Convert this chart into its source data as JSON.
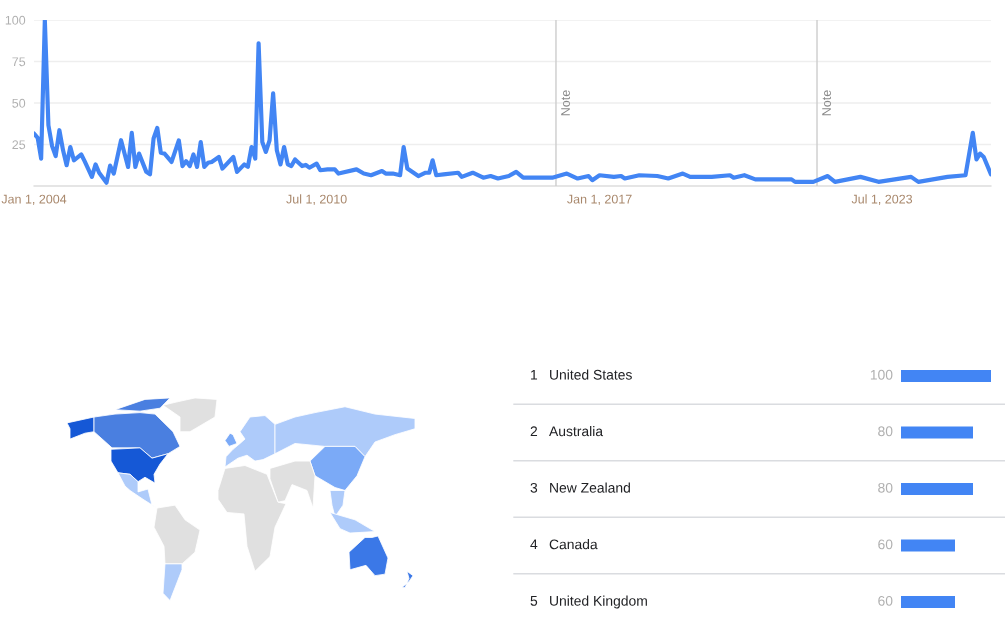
{
  "chart_data": [
    {
      "type": "line",
      "x": [
        "2004-01",
        "2004-02",
        "2004-03",
        "2004-04",
        "2004-05",
        "2004-06",
        "2004-07",
        "2004-08",
        "2004-09",
        "2004-10",
        "2004-11",
        "2004-12",
        "2005-02",
        "2005-03",
        "2005-05",
        "2005-06",
        "2005-07",
        "2005-09",
        "2005-10",
        "2005-11",
        "2006-01",
        "2006-03",
        "2006-04",
        "2006-05",
        "2006-06",
        "2006-08",
        "2006-09",
        "2006-10",
        "2006-11",
        "2006-12",
        "2007-01",
        "2007-03",
        "2007-05",
        "2007-06",
        "2007-07",
        "2007-08",
        "2007-09",
        "2007-10",
        "2007-11",
        "2007-12",
        "2008-01",
        "2008-02",
        "2008-04",
        "2008-05",
        "2008-08",
        "2008-09",
        "2008-11",
        "2008-12",
        "2009-01",
        "2009-02",
        "2009-03",
        "2009-04",
        "2009-05",
        "2009-06",
        "2009-07",
        "2009-08",
        "2009-09",
        "2009-10",
        "2009-11",
        "2009-12",
        "2010-01",
        "2010-03",
        "2010-04",
        "2010-05",
        "2010-07",
        "2010-08",
        "2010-10",
        "2010-12",
        "2011-01",
        "2011-06",
        "2011-08",
        "2011-10",
        "2012-01",
        "2012-02",
        "2012-04",
        "2012-06",
        "2012-07",
        "2012-08",
        "2012-11",
        "2013-01",
        "2013-02",
        "2013-03",
        "2013-04",
        "2013-06",
        "2013-10",
        "2013-11",
        "2014-02",
        "2014-05",
        "2014-07",
        "2014-09",
        "2014-12",
        "2015-02",
        "2015-04",
        "2015-12",
        "2016-04",
        "2016-07",
        "2016-10",
        "2016-11",
        "2017-01",
        "2017-05",
        "2017-07",
        "2017-08",
        "2017-12",
        "2018-05",
        "2018-08",
        "2018-12",
        "2019-02",
        "2019-08",
        "2020-01",
        "2020-02",
        "2020-05",
        "2020-08",
        "2021-06",
        "2021-07",
        "2021-12",
        "2022-04",
        "2022-06",
        "2023-01",
        "2023-06",
        "2024-03",
        "2024-05",
        "2025-01",
        "2025-06",
        "2025-08",
        "2025-09",
        "2025-10",
        "2025-11",
        "2026-01"
      ],
      "series": [
        {
          "color": "#4285f4",
          "values": [
            31.6,
            29,
            16.5,
            100,
            36.6,
            24,
            18,
            33.6,
            21.5,
            12.5,
            23.5,
            15.5,
            19,
            15,
            5.5,
            13,
            8,
            2,
            12.3,
            7.5,
            27.6,
            11.5,
            32,
            11.5,
            19.5,
            8.5,
            7,
            28.6,
            35,
            20,
            19.5,
            14.5,
            27.5,
            12,
            15,
            12,
            19,
            11.5,
            26.5,
            11.5,
            14,
            14.5,
            17.5,
            10.5,
            17.5,
            8.5,
            13,
            11.5,
            23.5,
            16.5,
            86,
            26.5,
            20.5,
            27.5,
            55.8,
            21.5,
            13,
            23.5,
            13,
            12,
            16,
            12,
            12.7,
            11,
            13.5,
            9.5,
            10,
            10,
            7.5,
            10,
            7.5,
            6.5,
            9,
            7.5,
            7.5,
            6.5,
            23.5,
            10.5,
            6,
            8,
            8,
            15.5,
            6.5,
            7,
            8,
            5.5,
            8,
            5,
            6,
            4.5,
            6,
            8.5,
            5,
            5,
            7.5,
            4.5,
            6,
            3.5,
            6.5,
            5.5,
            6,
            4.5,
            6.5,
            6,
            4.5,
            7.5,
            5.5,
            5.5,
            6.5,
            5,
            6.5,
            4,
            4,
            2.5,
            2.5,
            6,
            2.5,
            5.5,
            2.5,
            5.5,
            2.5,
            5.5,
            6.5,
            32,
            16,
            19.5,
            17.5,
            7
          ]
        }
      ],
      "xlim": [
        "2004-01-01",
        "2026-01-01"
      ],
      "xticks": [
        {
          "value": "2004-01-01",
          "label": "Jan 1, 2004"
        },
        {
          "value": "2010-07-01",
          "label": "Jul 1, 2010"
        },
        {
          "value": "2017-01-01",
          "label": "Jan 1, 2017"
        },
        {
          "value": "2023-07-01",
          "label": "Jul 1, 2023"
        }
      ],
      "ylim": [
        0,
        100
      ],
      "yticks": [
        25,
        50,
        75,
        100
      ],
      "grid": "y",
      "ref_lines": [
        {
          "axis": "x",
          "value": "2016-01-01",
          "label": "Note"
        },
        {
          "axis": "x",
          "value": "2022-01-01",
          "label": "Note"
        }
      ]
    },
    {
      "type": "bar",
      "orientation": "horizontal",
      "categories": [
        "United States",
        "Australia",
        "New Zealand",
        "Canada",
        "United Kingdom"
      ],
      "values": [
        100,
        80,
        80,
        60,
        60
      ],
      "color": "#4285f4",
      "xlim": [
        0,
        100
      ],
      "tick_labels": false,
      "data_labels": true,
      "annotations": [
        "1",
        "2",
        "3",
        "4",
        "5"
      ]
    }
  ]
}
